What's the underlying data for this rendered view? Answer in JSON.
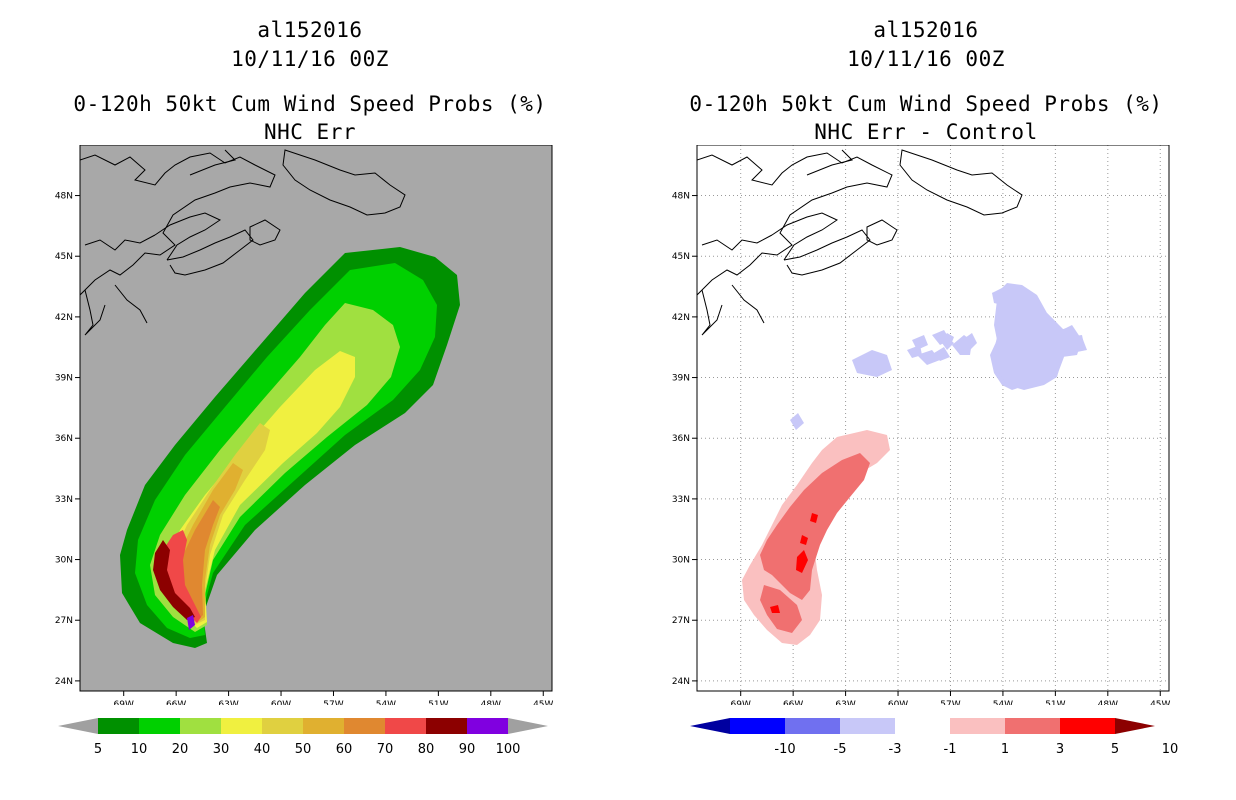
{
  "left": {
    "storm_id": "al152016",
    "datetime": "10/11/16 00Z",
    "product": "0-120h 50kt Cum Wind Speed Probs (%)",
    "subtitle": "NHC Err",
    "colorbar": {
      "labels": [
        "5",
        "10",
        "20",
        "30",
        "40",
        "50",
        "60",
        "70",
        "80",
        "90",
        "100"
      ],
      "colors": [
        "#009000",
        "#00d000",
        "#a0e040",
        "#f0f040",
        "#e0d040",
        "#e0b030",
        "#e08830",
        "#f04848",
        "#8c0000",
        "#8000e0"
      ],
      "under_color": "#a0a0a0",
      "over_color": "#a0a0a0"
    },
    "background_color": "#a8a8a8"
  },
  "right": {
    "storm_id": "al152016",
    "datetime": "10/11/16 00Z",
    "product": "0-120h 50kt Cum Wind Speed Probs (%)",
    "subtitle": "NHC Err - Control",
    "colorbar": {
      "labels": [
        "-10",
        "-5",
        "-3",
        "-1",
        "1",
        "3",
        "5",
        "10"
      ],
      "colors": [
        "#0000a0",
        "#0000ff",
        "#7070f0",
        "#c8c8f8",
        "#ffffff",
        "#fac0c0",
        "#f07070",
        "#ff0000",
        "#8c0000"
      ]
    },
    "background_color": "#ffffff"
  },
  "axes": {
    "lat_labels": [
      "48N",
      "45N",
      "42N",
      "39N",
      "36N",
      "33N",
      "30N",
      "27N",
      "24N"
    ],
    "lon_labels": [
      "69W",
      "66W",
      "63W",
      "60W",
      "57W",
      "54W",
      "51W",
      "48W",
      "45W"
    ],
    "lat_values": [
      48,
      45,
      42,
      39,
      36,
      33,
      30,
      27,
      24
    ],
    "lon_values": [
      -69,
      -66,
      -63,
      -60,
      -57,
      -54,
      -51,
      -48,
      -45
    ],
    "lat_range": [
      23.5,
      50.5
    ],
    "lon_range": [
      -71.5,
      -44.5
    ]
  }
}
